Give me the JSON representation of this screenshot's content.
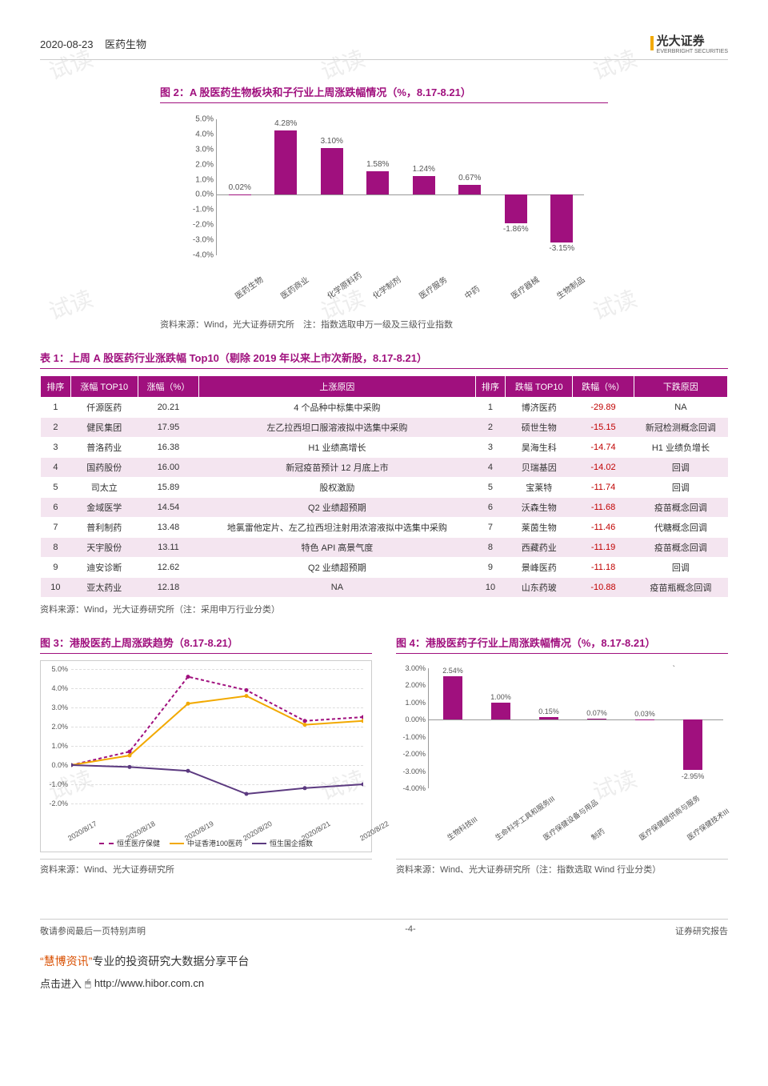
{
  "header": {
    "date": "2020-08-23",
    "sector": "医药生物",
    "company_cn": "光大证券",
    "company_en": "EVERBRIGHT SECURITIES"
  },
  "chart2": {
    "title": "图 2：A 股医药生物板块和子行业上周涨跌幅情况（%，8.17-8.21）",
    "type": "bar",
    "ymin": -4.0,
    "ymax": 5.0,
    "ytick_step": 1.0,
    "categories": [
      "医药生物",
      "医药商业",
      "化学原料药",
      "化学制剂",
      "医疗服务",
      "中药",
      "医疗器械",
      "生物制品"
    ],
    "values": [
      0.02,
      4.28,
      3.1,
      1.58,
      1.24,
      0.67,
      -1.86,
      -3.15
    ],
    "bar_color": "#a0107e",
    "label_fontsize": 10,
    "source": "资料来源：Wind，光大证券研究所　注：指数选取申万一级及三级行业指数"
  },
  "table1": {
    "title": "表 1：上周 A 股医药行业涨跌幅 Top10（剔除 2019 年以来上市次新股，8.17-8.21）",
    "headers": [
      "排序",
      "涨幅 TOP10",
      "涨幅（%）",
      "上涨原因",
      "排序",
      "跌幅 TOP10",
      "跌幅（%）",
      "下跌原因"
    ],
    "rows": [
      [
        "1",
        "仟源医药",
        "20.21",
        "4 个品种中标集中采购",
        "1",
        "博济医药",
        "-29.89",
        "NA"
      ],
      [
        "2",
        "健民集团",
        "17.95",
        "左乙拉西坦口服溶液拟中选集中采购",
        "2",
        "硕世生物",
        "-15.15",
        "新冠检测概念回调"
      ],
      [
        "3",
        "普洛药业",
        "16.38",
        "H1 业绩高增长",
        "3",
        "昊海生科",
        "-14.74",
        "H1 业绩负增长"
      ],
      [
        "4",
        "国药股份",
        "16.00",
        "新冠疫苗预计 12 月底上市",
        "4",
        "贝瑞基因",
        "-14.02",
        "回调"
      ],
      [
        "5",
        "司太立",
        "15.89",
        "股权激励",
        "5",
        "宝莱特",
        "-11.74",
        "回调"
      ],
      [
        "6",
        "金域医学",
        "14.54",
        "Q2 业绩超预期",
        "6",
        "沃森生物",
        "-11.68",
        "疫苗概念回调"
      ],
      [
        "7",
        "普利制药",
        "13.48",
        "地氯雷他定片、左乙拉西坦注射用浓溶液拟中选集中采购",
        "7",
        "莱茵生物",
        "-11.46",
        "代糖概念回调"
      ],
      [
        "8",
        "天宇股份",
        "13.11",
        "特色 API 高景气度",
        "8",
        "西藏药业",
        "-11.19",
        "疫苗概念回调"
      ],
      [
        "9",
        "迪安诊断",
        "12.62",
        "Q2 业绩超预期",
        "9",
        "景峰医药",
        "-11.18",
        "回调"
      ],
      [
        "10",
        "亚太药业",
        "12.18",
        "NA",
        "10",
        "山东药玻",
        "-10.88",
        "疫苗瓶概念回调"
      ]
    ],
    "source": "资料来源：Wind，光大证券研究所（注：采用申万行业分类）"
  },
  "chart3": {
    "title": "图 3：港股医药上周涨跌趋势（8.17-8.21）",
    "type": "line",
    "ymin": -2.0,
    "ymax": 5.0,
    "ytick_step": 1.0,
    "x_labels": [
      "2020/8/17",
      "2020/8/18",
      "2020/8/19",
      "2020/8/20",
      "2020/8/21",
      "2020/8/22"
    ],
    "series": [
      {
        "name": "恒生医疗保健",
        "color": "#a0107e",
        "dash": "4,3",
        "values": [
          0.0,
          0.7,
          4.6,
          3.9,
          2.3,
          2.5
        ]
      },
      {
        "name": "中证香港100医药",
        "color": "#f2a900",
        "dash": "",
        "values": [
          0.0,
          0.5,
          3.2,
          3.6,
          2.1,
          2.3
        ]
      },
      {
        "name": "恒生国企指数",
        "color": "#5c3a80",
        "dash": "",
        "values": [
          0.0,
          -0.1,
          -0.3,
          -1.5,
          -1.2,
          -1.0
        ]
      }
    ],
    "source": "资料来源：Wind、光大证券研究所"
  },
  "chart4": {
    "title": "图 4：港股医药子行业上周涨跌幅情况（%，8.17-8.21）",
    "type": "bar",
    "ymin": -4.0,
    "ymax": 3.0,
    "ytick_step": 1.0,
    "categories": [
      "生物科技III",
      "生命科学工具和服务III",
      "医疗保健设备与用品",
      "制药",
      "医疗保健提供商与服务",
      "医疗保健技术III"
    ],
    "values": [
      2.54,
      1.0,
      0.15,
      0.07,
      0.03,
      -2.95
    ],
    "bar_color": "#a0107e",
    "tick_label": "`",
    "source": "资料来源：Wind、光大证券研究所（注：指数选取 Wind 行业分类）"
  },
  "footer": {
    "left": "敬请参阅最后一页特别声明",
    "center": "-4-",
    "right": "证券研究报告"
  },
  "promo": {
    "brand": "“慧博资讯”",
    "tagline": "专业的投资研究大数据分享平台",
    "cta": "点击进入",
    "url": "http://www.hibor.com.cn"
  },
  "watermark_text": "试读"
}
